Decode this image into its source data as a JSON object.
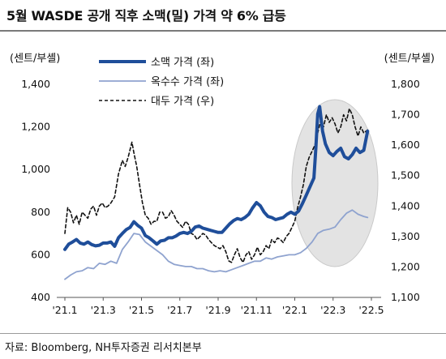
{
  "title": "5월 WASDE 공개 직후 소맥(밀) 가격 약 6% 급등",
  "left_unit": "(센트/부셸)",
  "right_unit": "(센트/부셸)",
  "source": "자료: Bloomberg, NH투자증권 리서치본부",
  "chart_data": {
    "type": "line",
    "x_ticks": [
      "'21.1",
      "'21.3",
      "'21.5",
      "'21.7",
      "'21.9",
      "'21.11",
      "'22.1",
      "'22.3",
      "'22.5"
    ],
    "y_left": {
      "ticks": [
        "400",
        "600",
        "800",
        "1,000",
        "1,200",
        "1,400"
      ],
      "range": [
        400,
        1400
      ]
    },
    "y_right": {
      "ticks": [
        "1,100",
        "1,200",
        "1,300",
        "1,400",
        "1,500",
        "1,600",
        "1,700",
        "1,800"
      ],
      "range": [
        1100,
        1800
      ]
    },
    "highlight": "'22.3 - '22.5",
    "series": [
      {
        "name": "소맥 가격 (좌)",
        "axis": "left",
        "color": "#1f4e9a",
        "style": "solid-thick",
        "points": [
          [
            0.0,
            625
          ],
          [
            0.2,
            650
          ],
          [
            0.4,
            660
          ],
          [
            0.6,
            672
          ],
          [
            0.8,
            655
          ],
          [
            1.0,
            650
          ],
          [
            1.2,
            660
          ],
          [
            1.4,
            648
          ],
          [
            1.6,
            642
          ],
          [
            1.8,
            645
          ],
          [
            2.0,
            655
          ],
          [
            2.2,
            655
          ],
          [
            2.4,
            660
          ],
          [
            2.6,
            640
          ],
          [
            2.8,
            680
          ],
          [
            3.0,
            700
          ],
          [
            3.2,
            718
          ],
          [
            3.4,
            728
          ],
          [
            3.6,
            755
          ],
          [
            3.8,
            738
          ],
          [
            4.0,
            725
          ],
          [
            4.2,
            690
          ],
          [
            4.4,
            680
          ],
          [
            4.6,
            665
          ],
          [
            4.8,
            650
          ],
          [
            5.0,
            665
          ],
          [
            5.2,
            668
          ],
          [
            5.4,
            680
          ],
          [
            5.6,
            680
          ],
          [
            5.8,
            688
          ],
          [
            6.0,
            700
          ],
          [
            6.2,
            705
          ],
          [
            6.4,
            700
          ],
          [
            6.6,
            710
          ],
          [
            6.8,
            730
          ],
          [
            7.0,
            735
          ],
          [
            7.2,
            725
          ],
          [
            7.4,
            720
          ],
          [
            7.6,
            715
          ],
          [
            7.8,
            710
          ],
          [
            8.0,
            705
          ],
          [
            8.2,
            705
          ],
          [
            8.4,
            725
          ],
          [
            8.6,
            745
          ],
          [
            8.8,
            760
          ],
          [
            9.0,
            770
          ],
          [
            9.2,
            765
          ],
          [
            9.4,
            775
          ],
          [
            9.6,
            790
          ],
          [
            9.8,
            820
          ],
          [
            10.0,
            845
          ],
          [
            10.2,
            830
          ],
          [
            10.4,
            800
          ],
          [
            10.6,
            780
          ],
          [
            10.8,
            775
          ],
          [
            11.0,
            765
          ],
          [
            11.2,
            770
          ],
          [
            11.4,
            775
          ],
          [
            11.6,
            790
          ],
          [
            11.8,
            800
          ],
          [
            12.0,
            790
          ],
          [
            12.2,
            805
          ],
          [
            12.4,
            840
          ],
          [
            12.6,
            880
          ],
          [
            12.8,
            920
          ],
          [
            13.0,
            960
          ],
          [
            13.1,
            1100
          ],
          [
            13.2,
            1260
          ],
          [
            13.3,
            1295
          ],
          [
            13.45,
            1180
          ],
          [
            13.6,
            1120
          ],
          [
            13.8,
            1080
          ],
          [
            14.0,
            1065
          ],
          [
            14.2,
            1085
          ],
          [
            14.4,
            1100
          ],
          [
            14.6,
            1060
          ],
          [
            14.8,
            1050
          ],
          [
            15.0,
            1070
          ],
          [
            15.2,
            1100
          ],
          [
            15.4,
            1080
          ],
          [
            15.6,
            1090
          ],
          [
            15.8,
            1180
          ]
        ]
      },
      {
        "name": "옥수수 가격 (좌)",
        "axis": "left",
        "color": "#8fa3cf",
        "style": "solid-thin",
        "points": [
          [
            0.0,
            485
          ],
          [
            0.3,
            505
          ],
          [
            0.6,
            520
          ],
          [
            0.9,
            525
          ],
          [
            1.2,
            540
          ],
          [
            1.5,
            535
          ],
          [
            1.8,
            560
          ],
          [
            2.1,
            555
          ],
          [
            2.4,
            570
          ],
          [
            2.7,
            560
          ],
          [
            3.0,
            625
          ],
          [
            3.3,
            660
          ],
          [
            3.6,
            700
          ],
          [
            3.9,
            695
          ],
          [
            4.2,
            660
          ],
          [
            4.5,
            640
          ],
          [
            4.8,
            620
          ],
          [
            5.1,
            600
          ],
          [
            5.4,
            570
          ],
          [
            5.7,
            555
          ],
          [
            6.0,
            550
          ],
          [
            6.3,
            545
          ],
          [
            6.6,
            545
          ],
          [
            6.9,
            535
          ],
          [
            7.2,
            535
          ],
          [
            7.5,
            525
          ],
          [
            7.8,
            520
          ],
          [
            8.1,
            525
          ],
          [
            8.4,
            520
          ],
          [
            8.7,
            530
          ],
          [
            9.0,
            540
          ],
          [
            9.3,
            550
          ],
          [
            9.6,
            560
          ],
          [
            9.9,
            570
          ],
          [
            10.2,
            570
          ],
          [
            10.5,
            585
          ],
          [
            10.8,
            580
          ],
          [
            11.1,
            590
          ],
          [
            11.4,
            595
          ],
          [
            11.7,
            600
          ],
          [
            12.0,
            600
          ],
          [
            12.3,
            610
          ],
          [
            12.6,
            630
          ],
          [
            12.9,
            660
          ],
          [
            13.2,
            700
          ],
          [
            13.5,
            715
          ],
          [
            13.8,
            720
          ],
          [
            14.1,
            730
          ],
          [
            14.4,
            765
          ],
          [
            14.7,
            795
          ],
          [
            15.0,
            810
          ],
          [
            15.3,
            790
          ],
          [
            15.6,
            780
          ],
          [
            15.8,
            775
          ]
        ]
      },
      {
        "name": "대두 가격 (우)",
        "axis": "right",
        "color": "#111111",
        "style": "dashed",
        "points": [
          [
            0.0,
            1310
          ],
          [
            0.15,
            1395
          ],
          [
            0.3,
            1380
          ],
          [
            0.45,
            1345
          ],
          [
            0.6,
            1370
          ],
          [
            0.75,
            1340
          ],
          [
            0.9,
            1380
          ],
          [
            1.05,
            1370
          ],
          [
            1.2,
            1360
          ],
          [
            1.35,
            1390
          ],
          [
            1.5,
            1400
          ],
          [
            1.65,
            1370
          ],
          [
            1.8,
            1400
          ],
          [
            1.95,
            1410
          ],
          [
            2.1,
            1395
          ],
          [
            2.25,
            1400
          ],
          [
            2.4,
            1410
          ],
          [
            2.6,
            1430
          ],
          [
            2.8,
            1505
          ],
          [
            3.0,
            1550
          ],
          [
            3.15,
            1530
          ],
          [
            3.3,
            1560
          ],
          [
            3.5,
            1610
          ],
          [
            3.6,
            1575
          ],
          [
            3.75,
            1530
          ],
          [
            3.9,
            1470
          ],
          [
            4.05,
            1410
          ],
          [
            4.2,
            1370
          ],
          [
            4.35,
            1360
          ],
          [
            4.5,
            1340
          ],
          [
            4.65,
            1350
          ],
          [
            4.8,
            1350
          ],
          [
            4.95,
            1380
          ],
          [
            5.1,
            1380
          ],
          [
            5.25,
            1360
          ],
          [
            5.4,
            1365
          ],
          [
            5.55,
            1385
          ],
          [
            5.7,
            1370
          ],
          [
            5.85,
            1350
          ],
          [
            6.0,
            1340
          ],
          [
            6.15,
            1330
          ],
          [
            6.3,
            1350
          ],
          [
            6.45,
            1340
          ],
          [
            6.6,
            1310
          ],
          [
            6.75,
            1305
          ],
          [
            6.9,
            1290
          ],
          [
            7.05,
            1300
          ],
          [
            7.2,
            1310
          ],
          [
            7.35,
            1305
          ],
          [
            7.5,
            1290
          ],
          [
            7.65,
            1280
          ],
          [
            7.8,
            1270
          ],
          [
            7.95,
            1265
          ],
          [
            8.1,
            1260
          ],
          [
            8.25,
            1270
          ],
          [
            8.4,
            1250
          ],
          [
            8.55,
            1220
          ],
          [
            8.7,
            1215
          ],
          [
            8.85,
            1240
          ],
          [
            9.0,
            1260
          ],
          [
            9.15,
            1230
          ],
          [
            9.3,
            1215
          ],
          [
            9.45,
            1240
          ],
          [
            9.6,
            1250
          ],
          [
            9.75,
            1225
          ],
          [
            9.9,
            1240
          ],
          [
            10.05,
            1265
          ],
          [
            10.2,
            1240
          ],
          [
            10.35,
            1250
          ],
          [
            10.5,
            1270
          ],
          [
            10.65,
            1260
          ],
          [
            10.8,
            1290
          ],
          [
            10.95,
            1280
          ],
          [
            11.1,
            1295
          ],
          [
            11.25,
            1290
          ],
          [
            11.4,
            1280
          ],
          [
            11.55,
            1300
          ],
          [
            11.7,
            1310
          ],
          [
            11.85,
            1330
          ],
          [
            12.0,
            1350
          ],
          [
            12.15,
            1395
          ],
          [
            12.3,
            1430
          ],
          [
            12.45,
            1470
          ],
          [
            12.6,
            1530
          ],
          [
            12.75,
            1560
          ],
          [
            12.9,
            1580
          ],
          [
            13.05,
            1600
          ],
          [
            13.2,
            1640
          ],
          [
            13.35,
            1680
          ],
          [
            13.5,
            1660
          ],
          [
            13.65,
            1700
          ],
          [
            13.8,
            1675
          ],
          [
            13.95,
            1690
          ],
          [
            14.1,
            1670
          ],
          [
            14.25,
            1640
          ],
          [
            14.4,
            1660
          ],
          [
            14.55,
            1700
          ],
          [
            14.7,
            1680
          ],
          [
            14.85,
            1720
          ],
          [
            15.0,
            1700
          ],
          [
            15.15,
            1660
          ],
          [
            15.3,
            1630
          ],
          [
            15.45,
            1660
          ],
          [
            15.6,
            1640
          ],
          [
            15.8,
            1650
          ]
        ]
      }
    ]
  }
}
